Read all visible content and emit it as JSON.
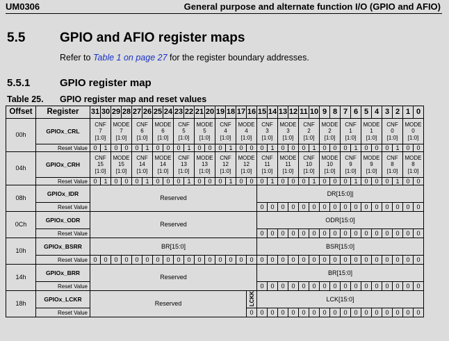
{
  "header": {
    "doc_id": "UM0306",
    "title": "General purpose and alternate function I/O (GPIO and AFIO)"
  },
  "section": {
    "number": "5.5",
    "title": "GPIO and AFIO register maps",
    "intro_before": "Refer to ",
    "intro_link": "Table 1 on page 27",
    "intro_after": " for the register boundary addresses."
  },
  "subsection": {
    "number": "5.5.1",
    "title": "GPIO register map"
  },
  "table": {
    "caption_label": "Table 25.",
    "caption_title": "GPIO register map and reset values",
    "header_offset": "Offset",
    "header_register": "Register",
    "reset_label": "Reset Value",
    "rows": [
      {
        "offset": "00h",
        "name": "GPIOx_CRL",
        "type": "fields",
        "fields": [
          [
            "CNF",
            "7",
            "[1:0]"
          ],
          [
            "MODE",
            "7",
            "[1:0]"
          ],
          [
            "CNF",
            "6",
            "[1:0]"
          ],
          [
            "MODE",
            "6",
            "[1:0]"
          ],
          [
            "CNF",
            "5",
            "[1:0]"
          ],
          [
            "MODE",
            "5",
            "[1:0]"
          ],
          [
            "CNF",
            "4",
            "[1:0]"
          ],
          [
            "MODE",
            "4",
            "[1:0]"
          ],
          [
            "CNF",
            "3",
            "[1:0]"
          ],
          [
            "MODE",
            "3",
            "[1:0]"
          ],
          [
            "CNF",
            "2",
            "[1:0]"
          ],
          [
            "MODE",
            "2",
            "[1:0]"
          ],
          [
            "CNF",
            "1",
            "[1:0]"
          ],
          [
            "MODE",
            "1",
            "[1:0]"
          ],
          [
            "CNF",
            "0",
            "[1:0]"
          ],
          [
            "MODE",
            "0",
            "[1:0]"
          ]
        ],
        "reset": [
          "0",
          "1",
          "0",
          "0",
          "0",
          "1",
          "0",
          "0",
          "0",
          "1",
          "0",
          "0",
          "0",
          "1",
          "0",
          "0",
          "0",
          "1",
          "0",
          "0",
          "0",
          "1",
          "0",
          "0",
          "0",
          "1",
          "0",
          "0",
          "0",
          "1",
          "0",
          "0"
        ]
      },
      {
        "offset": "04h",
        "name": "GPIOx_CRH",
        "type": "fields",
        "fields": [
          [
            "CNF",
            "15",
            "[1:0]"
          ],
          [
            "MODE",
            "15",
            "[1:0]"
          ],
          [
            "CNF",
            "14",
            "[1:0]"
          ],
          [
            "MODE",
            "14",
            "[1:0]"
          ],
          [
            "CNF",
            "13",
            "[1:0]"
          ],
          [
            "MODE",
            "13",
            "[1:0]"
          ],
          [
            "CNF",
            "12",
            "[1:0]"
          ],
          [
            "MODE",
            "12",
            "[1:0]"
          ],
          [
            "CNF",
            "11",
            "[1:0]"
          ],
          [
            "MODE",
            "11",
            "[1:0]"
          ],
          [
            "CNF",
            "10",
            "[1:0]"
          ],
          [
            "MODE",
            "10",
            "[1:0]"
          ],
          [
            "CNF",
            "9",
            "[1:0]"
          ],
          [
            "MODE",
            "9",
            "[1:0]"
          ],
          [
            "CNF",
            "8",
            "[1:0]"
          ],
          [
            "MODE",
            "8",
            "[1:0]"
          ]
        ],
        "reset": [
          "0",
          "1",
          "0",
          "0",
          "0",
          "1",
          "0",
          "0",
          "0",
          "1",
          "0",
          "0",
          "0",
          "1",
          "0",
          "0",
          "0",
          "1",
          "0",
          "0",
          "0",
          "1",
          "0",
          "0",
          "0",
          "1",
          "0",
          "0",
          "0",
          "1",
          "0",
          "0"
        ]
      },
      {
        "offset": "08h",
        "name": "GPIOx_IDR",
        "type": "split",
        "hi": "Reserved",
        "lo": "DR[15:0]|",
        "hi_reset": false,
        "reset": [
          "0",
          "0",
          "0",
          "0",
          "0",
          "0",
          "0",
          "0",
          "0",
          "0",
          "0",
          "0",
          "0",
          "0",
          "0",
          "0"
        ]
      },
      {
        "offset": "0Ch",
        "name": "GPIOx_ODR",
        "type": "split",
        "hi": "Reserved",
        "lo": "ODR[15:0]",
        "hi_reset": false,
        "reset": [
          "0",
          "0",
          "0",
          "0",
          "0",
          "0",
          "0",
          "0",
          "0",
          "0",
          "0",
          "0",
          "0",
          "0",
          "0",
          "0"
        ]
      },
      {
        "offset": "10h",
        "name": "GPIOx_BSRR",
        "type": "split",
        "hi": "BR[15:0]",
        "lo": "BSR[15:0]",
        "hi_reset": true,
        "reset": [
          "0",
          "0",
          "0",
          "0",
          "0",
          "0",
          "0",
          "0",
          "0",
          "0",
          "0",
          "0",
          "0",
          "0",
          "0",
          "0",
          "0",
          "0",
          "0",
          "0",
          "0",
          "0",
          "0",
          "0",
          "0",
          "0",
          "0",
          "0",
          "0",
          "0",
          "0",
          "0"
        ]
      },
      {
        "offset": "14h",
        "name": "GPIOx_BRR",
        "type": "split",
        "hi": "Reserved",
        "lo": "BR[15:0]",
        "hi_reset": false,
        "reset": [
          "0",
          "0",
          "0",
          "0",
          "0",
          "0",
          "0",
          "0",
          "0",
          "0",
          "0",
          "0",
          "0",
          "0",
          "0",
          "0"
        ]
      },
      {
        "offset": "18h",
        "name": "GPIOx_LCKR",
        "type": "lckr",
        "hi": "Reserved",
        "lckk": "LCKK",
        "lo": "LCK[15:0]",
        "reset": [
          "0",
          "0",
          "0",
          "0",
          "0",
          "0",
          "0",
          "0",
          "0",
          "0",
          "0",
          "0",
          "0",
          "0",
          "0",
          "0",
          "0"
        ]
      }
    ]
  }
}
